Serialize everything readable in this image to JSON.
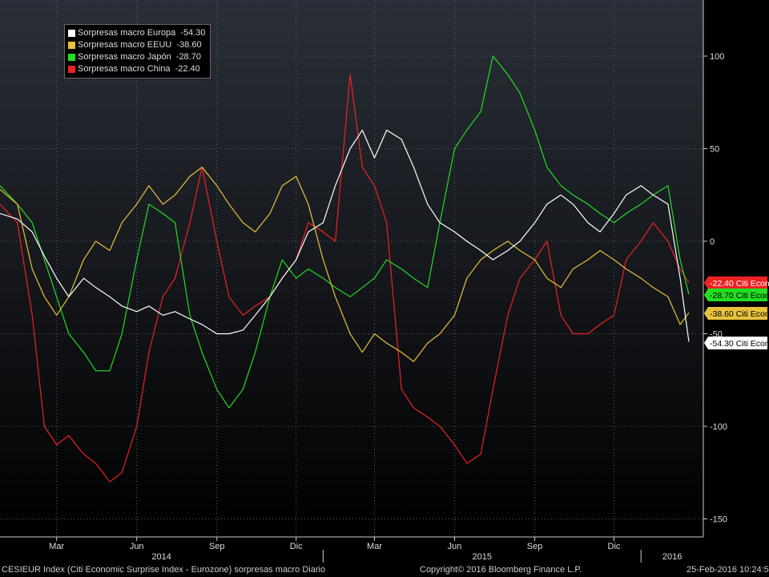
{
  "legend": [
    {
      "name": "Sorpresas macro Europa",
      "value": "-54.30",
      "color": "#ffffff"
    },
    {
      "name": "Sorpresas macro EEUU",
      "value": "-38.60",
      "color": "#e8c23c"
    },
    {
      "name": "Sorpresas macro Japón",
      "value": "-28.70",
      "color": "#22dd22"
    },
    {
      "name": "Sorpresas macro China",
      "value": "-22.40",
      "color": "#ee2222"
    }
  ],
  "footer": {
    "left": "CESIEUR Index (Citi Economic Surprise Index - Eurozone) sorpresas macro  Diario",
    "center": "Copyright© 2016 Bloomberg Finance L.P.",
    "right": "25-Feb-2016 10:24:55"
  },
  "chart_data": {
    "type": "line",
    "y_ticks": [
      100,
      50,
      0,
      -50,
      -100,
      -150
    ],
    "ylim": [
      -155,
      130
    ],
    "month_ticks": [
      "Mar",
      "Jun",
      "Sep",
      "Dic",
      "Mar",
      "Jun",
      "Sep",
      "Dic"
    ],
    "year_labels": [
      "2014",
      "2015",
      "2016"
    ],
    "last_value_tags": [
      {
        "label": "-22.40 Citi Econ",
        "value": -22.4,
        "color": "#ee2222",
        "text_color": "#ffffff"
      },
      {
        "label": "-28.70 Citi Econ",
        "value": -28.7,
        "color": "#22dd22",
        "text_color": "#000000"
      },
      {
        "label": "-38.60 Citi Econ",
        "value": -38.6,
        "color": "#e8c23c",
        "text_color": "#000000"
      },
      {
        "label": "-54.30 Citi Econ",
        "value": -54.3,
        "color": "#ffffff",
        "text_color": "#000000"
      }
    ],
    "x": [
      "2013-12-26",
      "2014-01-15",
      "2014-02-01",
      "2014-02-15",
      "2014-03-01",
      "2014-03-15",
      "2014-04-01",
      "2014-04-15",
      "2014-05-01",
      "2014-05-15",
      "2014-06-01",
      "2014-06-15",
      "2014-07-01",
      "2014-07-15",
      "2014-08-01",
      "2014-08-15",
      "2014-09-01",
      "2014-09-15",
      "2014-10-01",
      "2014-10-15",
      "2014-11-01",
      "2014-11-15",
      "2014-12-01",
      "2014-12-15",
      "2015-01-01",
      "2015-01-15",
      "2015-02-01",
      "2015-02-15",
      "2015-03-01",
      "2015-03-15",
      "2015-04-01",
      "2015-04-15",
      "2015-05-01",
      "2015-05-15",
      "2015-06-01",
      "2015-06-15",
      "2015-07-01",
      "2015-07-15",
      "2015-08-01",
      "2015-08-15",
      "2015-09-01",
      "2015-09-15",
      "2015-10-01",
      "2015-10-15",
      "2015-11-01",
      "2015-11-15",
      "2015-12-01",
      "2015-12-15",
      "2016-01-01",
      "2016-01-15",
      "2016-02-01",
      "2016-02-15",
      "2016-02-25"
    ],
    "series": [
      {
        "name": "Sorpresas macro Europa",
        "color": "#ffffff",
        "values": [
          15,
          12,
          5,
          -8,
          -20,
          -30,
          -20,
          -25,
          -30,
          -35,
          -38,
          -35,
          -40,
          -38,
          -42,
          -45,
          -50,
          -50,
          -48,
          -40,
          -30,
          -20,
          -10,
          5,
          10,
          30,
          50,
          60,
          45,
          60,
          55,
          40,
          20,
          10,
          5,
          0,
          -5,
          -10,
          -5,
          0,
          10,
          20,
          25,
          20,
          10,
          5,
          15,
          25,
          30,
          25,
          20,
          -20,
          -54.3
        ]
      },
      {
        "name": "Sorpresas macro EEUU",
        "color": "#e8c23c",
        "values": [
          28,
          20,
          -15,
          -30,
          -40,
          -30,
          -10,
          0,
          -5,
          10,
          20,
          30,
          20,
          25,
          35,
          40,
          30,
          20,
          10,
          5,
          15,
          30,
          35,
          20,
          -10,
          -30,
          -50,
          -60,
          -50,
          -55,
          -60,
          -65,
          -55,
          -50,
          -40,
          -20,
          -10,
          -5,
          0,
          -5,
          -10,
          -20,
          -25,
          -15,
          -10,
          -5,
          -10,
          -15,
          -20,
          -25,
          -30,
          -45,
          -38.6
        ]
      },
      {
        "name": "Sorpresas macro Japón",
        "color": "#22dd22",
        "values": [
          30,
          20,
          10,
          -10,
          -30,
          -50,
          -60,
          -70,
          -70,
          -50,
          -10,
          20,
          15,
          10,
          -40,
          -60,
          -80,
          -90,
          -80,
          -60,
          -30,
          -10,
          -20,
          -15,
          -20,
          -25,
          -30,
          -25,
          -20,
          -10,
          -15,
          -20,
          -25,
          10,
          50,
          60,
          70,
          100,
          90,
          80,
          60,
          40,
          30,
          25,
          20,
          15,
          10,
          15,
          20,
          25,
          30,
          -10,
          -28.7
        ]
      },
      {
        "name": "Sorpresas macro China",
        "color": "#ee2222",
        "values": [
          20,
          10,
          -40,
          -100,
          -110,
          -105,
          -115,
          -120,
          -130,
          -125,
          -100,
          -60,
          -30,
          -20,
          10,
          40,
          0,
          -30,
          -40,
          -35,
          -30,
          -20,
          -10,
          10,
          5,
          0,
          90,
          40,
          30,
          10,
          -80,
          -90,
          -95,
          -100,
          -110,
          -120,
          -115,
          -80,
          -40,
          -20,
          -10,
          0,
          -40,
          -50,
          -50,
          -45,
          -40,
          -10,
          0,
          10,
          0,
          -15,
          -22.4
        ]
      }
    ]
  }
}
